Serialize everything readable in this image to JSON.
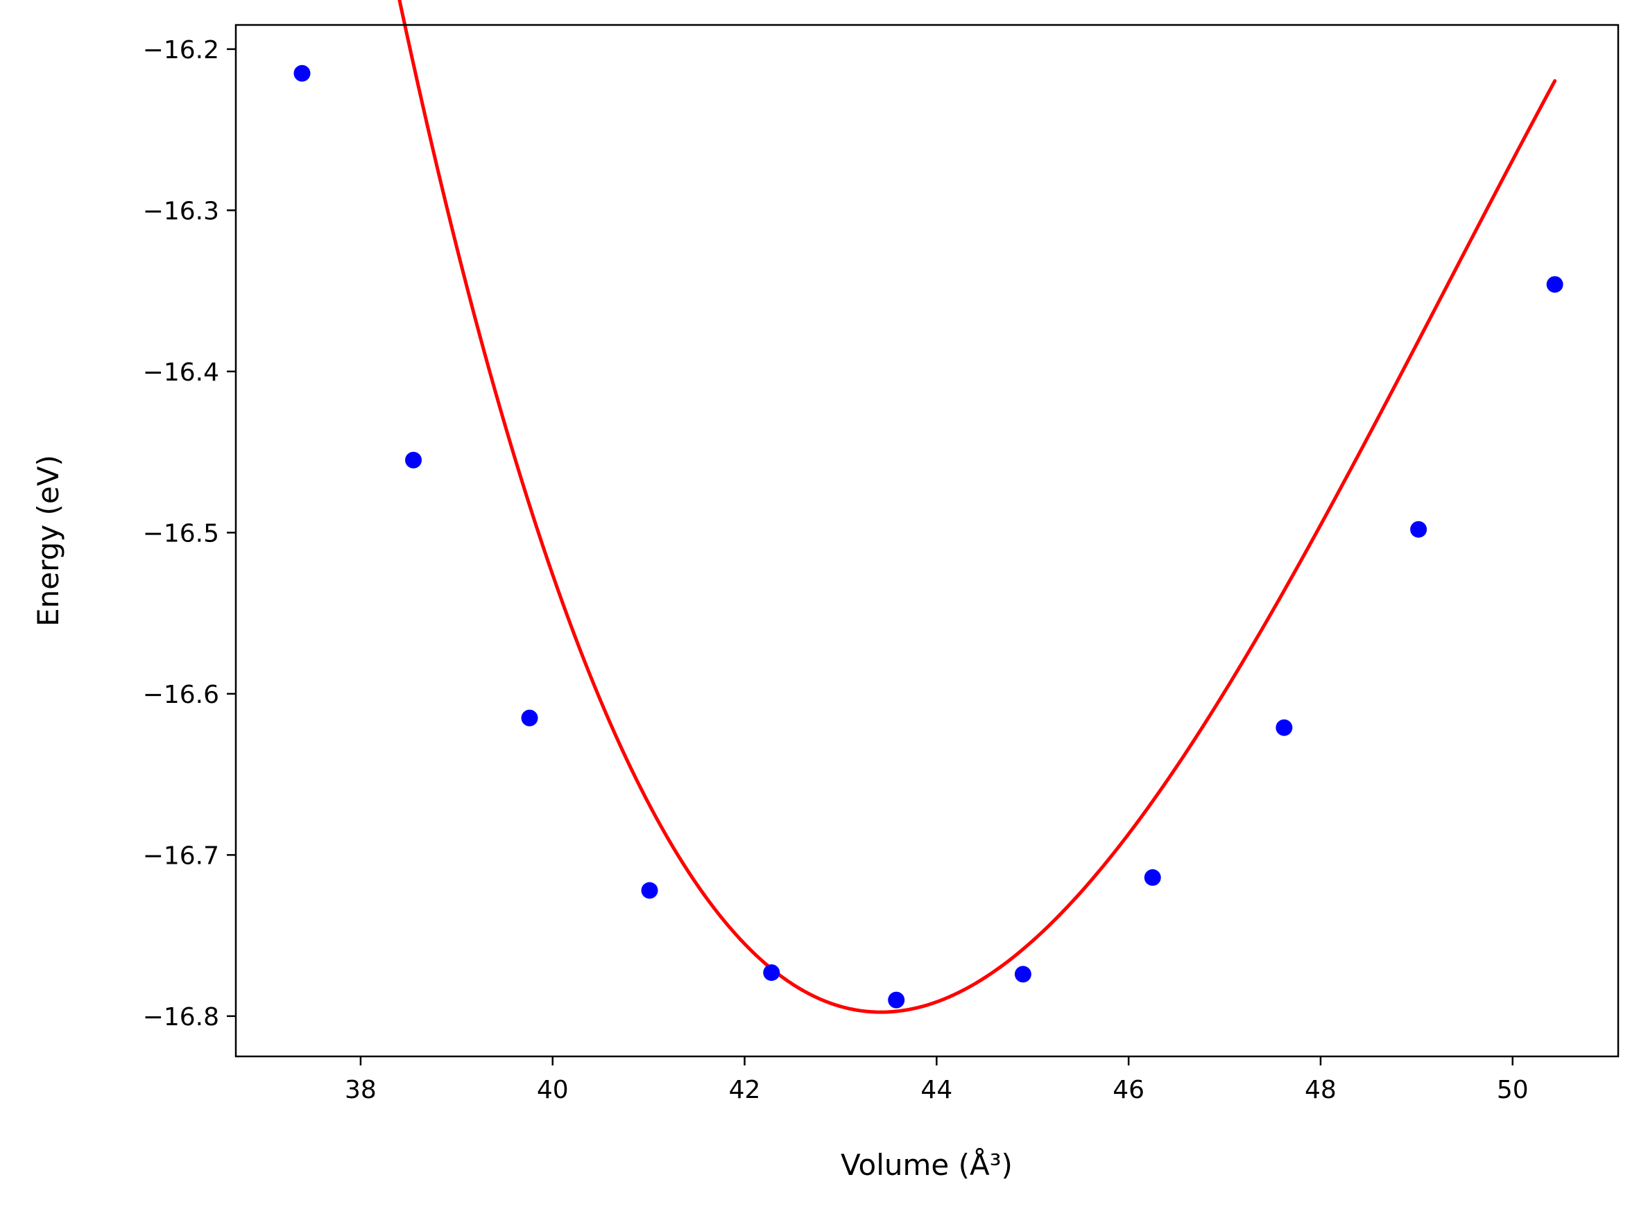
{
  "chart_data": {
    "type": "scatter",
    "title": "",
    "xlabel": "Volume (Å³)",
    "ylabel": "Energy (eV)",
    "xlim": [
      36.7,
      51.1
    ],
    "ylim": [
      -16.825,
      -16.185
    ],
    "x_ticks": [
      38,
      40,
      42,
      44,
      46,
      48,
      50
    ],
    "x_tick_labels": [
      "38",
      "40",
      "42",
      "44",
      "46",
      "48",
      "50"
    ],
    "y_ticks": [
      -16.2,
      -16.3,
      -16.4,
      -16.5,
      -16.6,
      -16.7,
      -16.8
    ],
    "y_tick_labels": [
      "−16.2",
      "−16.3",
      "−16.4",
      "−16.5",
      "−16.6",
      "−16.7",
      "−16.8"
    ],
    "grid": false,
    "legend": "none",
    "series": [
      {
        "type": "scatter",
        "color": "#0000ff",
        "x": [
          37.39,
          38.55,
          39.76,
          41.01,
          42.28,
          43.58,
          44.9,
          46.25,
          47.62,
          49.02,
          50.44
        ],
        "y": [
          -16.215,
          -16.455,
          -16.615,
          -16.722,
          -16.773,
          -16.79,
          -16.774,
          -16.714,
          -16.621,
          -16.498,
          -16.346
        ]
      },
      {
        "type": "line",
        "color": "#ff0000",
        "fit": "cubic",
        "fit_coefficients": [
          -16.79752,
          0.0,
          0.019447,
          -0.0011
        ],
        "fit_center": 43.42,
        "x_range": [
          37.39,
          50.44
        ]
      }
    ]
  }
}
